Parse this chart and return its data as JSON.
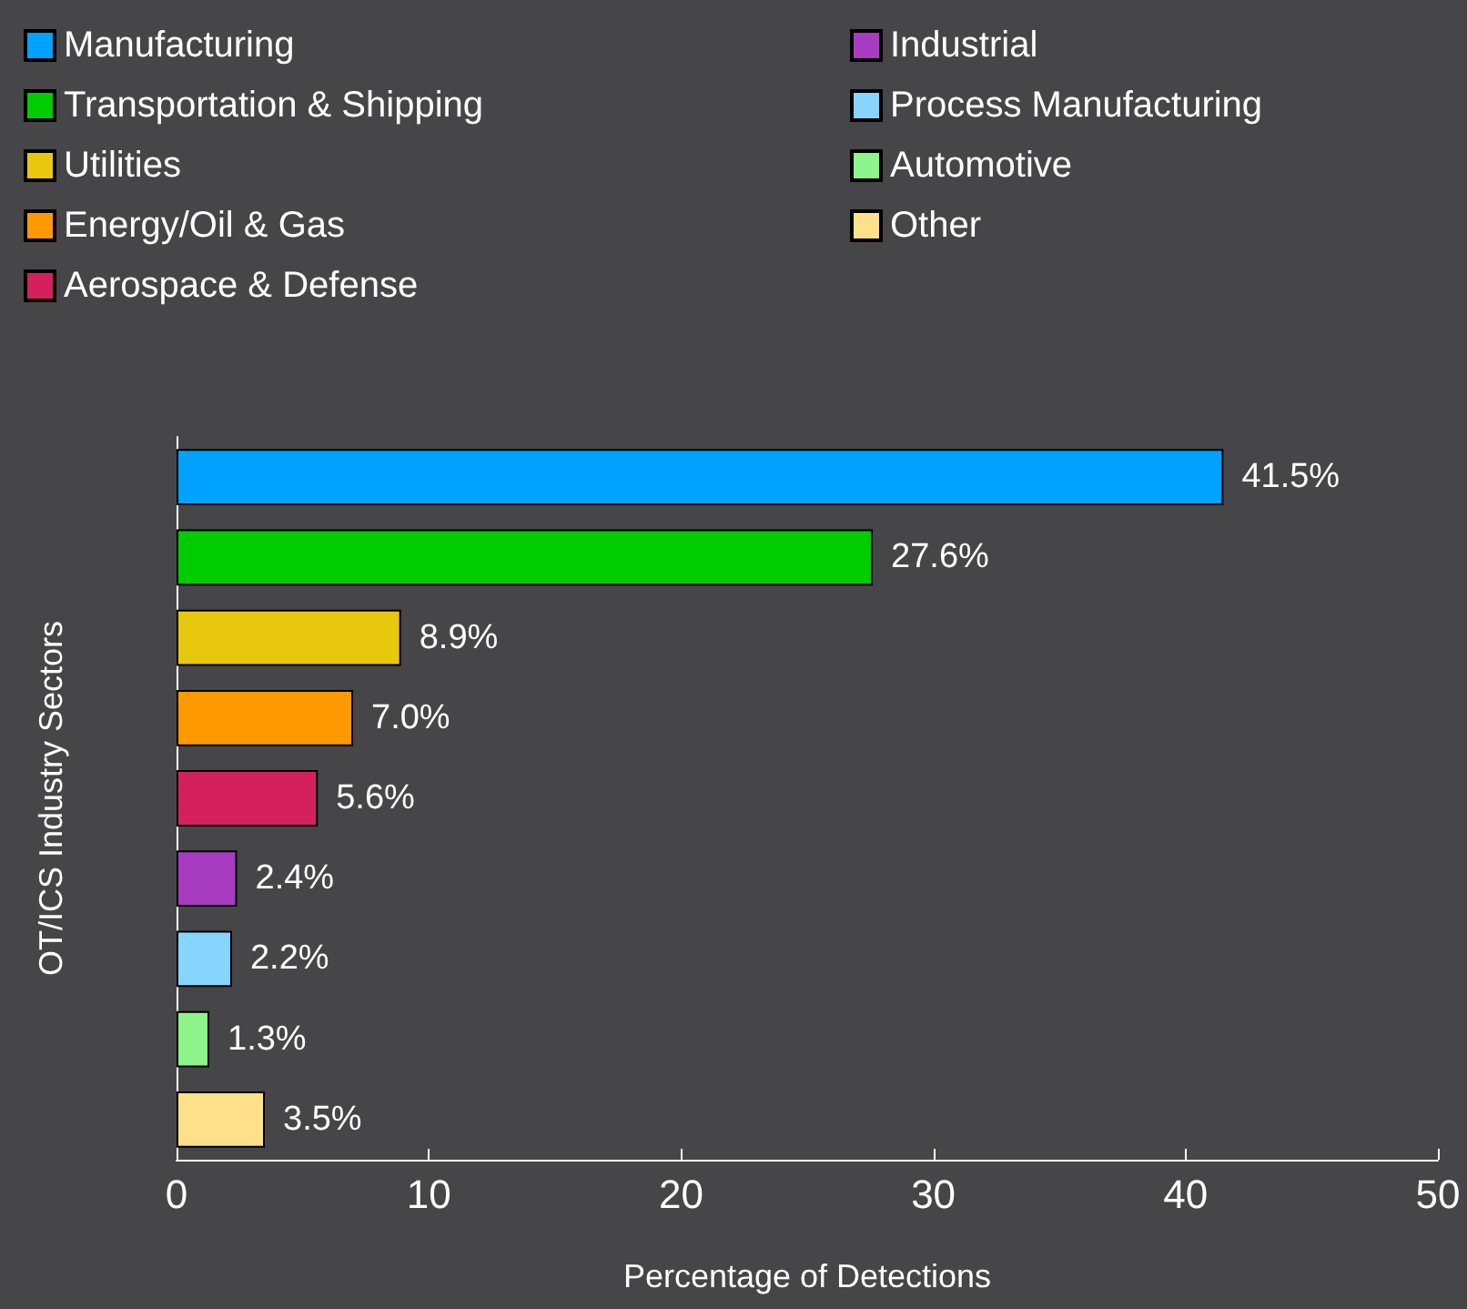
{
  "chart_data": {
    "type": "bar",
    "orientation": "horizontal",
    "xlabel": "Percentage of Detections",
    "ylabel": "OT/ICS Industry Sectors",
    "categories": [
      null,
      null,
      null,
      null,
      null,
      null,
      null,
      null,
      null
    ],
    "series": [
      {
        "name": "Manufacturing",
        "color": "#00a2ff",
        "values": [
          41.5,
          null,
          null,
          null,
          null,
          null,
          null,
          null,
          null
        ],
        "value_labels": [
          "41.5%",
          null,
          null,
          null,
          null,
          null,
          null,
          null,
          null
        ]
      },
      {
        "name": "Transportation & Shipping",
        "color": "#00cc00",
        "values": [
          null,
          27.6,
          null,
          null,
          null,
          null,
          null,
          null,
          null
        ],
        "value_labels": [
          null,
          "27.6%",
          null,
          null,
          null,
          null,
          null,
          null,
          null
        ]
      },
      {
        "name": "Utilities",
        "color": "#e8c80f",
        "values": [
          null,
          null,
          8.9,
          null,
          null,
          null,
          null,
          null,
          null
        ],
        "value_labels": [
          null,
          null,
          "8.9%",
          null,
          null,
          null,
          null,
          null,
          null
        ]
      },
      {
        "name": "Energy/Oil & Gas",
        "color": "#ff9900",
        "values": [
          null,
          null,
          null,
          7.0,
          null,
          null,
          null,
          null,
          null
        ],
        "value_labels": [
          null,
          null,
          null,
          "7.0%",
          null,
          null,
          null,
          null,
          null
        ]
      },
      {
        "name": "Aerospace & Defense",
        "color": "#d4215e",
        "values": [
          null,
          null,
          null,
          null,
          5.6,
          null,
          null,
          null,
          null
        ],
        "value_labels": [
          null,
          null,
          null,
          null,
          "5.6%",
          null,
          null,
          null,
          null
        ]
      },
      {
        "name": "Industrial",
        "color": "#a83cc0",
        "values": [
          null,
          null,
          null,
          null,
          null,
          2.4,
          null,
          null,
          null
        ],
        "value_labels": [
          null,
          null,
          null,
          null,
          null,
          "2.4%",
          null,
          null,
          null
        ]
      },
      {
        "name": "Process Manufacturing",
        "color": "#87d4ff",
        "values": [
          null,
          null,
          null,
          null,
          null,
          null,
          2.2,
          null,
          null
        ],
        "value_labels": [
          null,
          null,
          null,
          null,
          null,
          null,
          "2.2%",
          null,
          null
        ]
      },
      {
        "name": "Automotive",
        "color": "#8ef58a",
        "values": [
          null,
          null,
          null,
          null,
          null,
          null,
          null,
          1.3,
          null
        ],
        "value_labels": [
          null,
          null,
          null,
          null,
          null,
          null,
          null,
          "1.3%",
          null
        ]
      },
      {
        "name": "Other",
        "color": "#ffe08a",
        "values": [
          null,
          null,
          null,
          null,
          null,
          null,
          null,
          null,
          3.5
        ],
        "value_labels": [
          null,
          null,
          null,
          null,
          null,
          null,
          null,
          null,
          "3.5%"
        ]
      }
    ],
    "xlim": [
      0,
      50
    ],
    "xticks": [
      0,
      10,
      20,
      30,
      40,
      50
    ],
    "grid": false,
    "legend": "top"
  }
}
